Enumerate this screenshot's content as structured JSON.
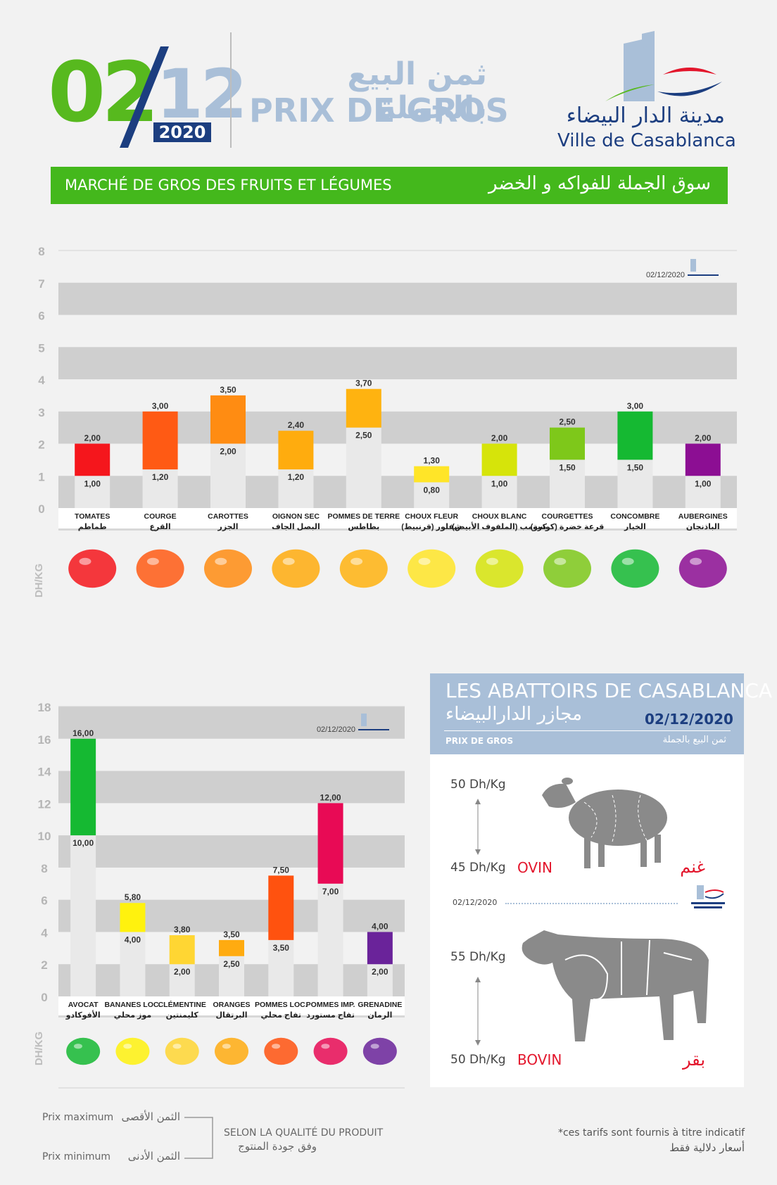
{
  "header": {
    "day": "02",
    "month": "12",
    "year": "2020",
    "title_ar": "ثمن البيع بالجملة",
    "title_fr": "PRIX DE GROS",
    "logo_ar": "مدينة الدار البيضاء",
    "logo_fr": "Ville de Casablanca"
  },
  "banner": {
    "fr": "MARCHÉ DE GROS DES FRUITS ET LÉGUMES",
    "ar": "سوق الجملة للفواكه و الخضر"
  },
  "colors": {
    "green": "#44b81c",
    "blue_light": "#a9bfd8",
    "navy": "#1c3e80",
    "red": "#e3162c"
  },
  "chart_data": [
    {
      "type": "bar",
      "ylabel": "DH/KG",
      "ylim": [
        0,
        8
      ],
      "yticks": [
        "0",
        "1",
        "2",
        "3",
        "4",
        "5",
        "6",
        "7",
        "8"
      ],
      "stamp_date": "02/12/2020",
      "categories": [
        {
          "fr": "TOMATES",
          "ar": "طماطم"
        },
        {
          "fr": "COURGE",
          "ar": "القرع"
        },
        {
          "fr": "CAROTTES",
          "ar": "الجزر"
        },
        {
          "fr": "OIGNON SEC",
          "ar": "البصل الجاف"
        },
        {
          "fr": "POMMES DE TERRE",
          "ar": "بطاطس"
        },
        {
          "fr": "CHOUX FLEUR",
          "ar": "شفلور (قرنبيط)"
        },
        {
          "fr": "CHOUX BLANC",
          "ar": "كرومب (الملفوف الأبيض)"
        },
        {
          "fr": "COURGETTES",
          "ar": "قرعة خضرة (كوسة)"
        },
        {
          "fr": "CONCOMBRE",
          "ar": "الخيار"
        },
        {
          "fr": "AUBERGINES",
          "ar": "الباذنجان"
        }
      ],
      "min": [
        1.0,
        1.2,
        2.0,
        1.2,
        2.5,
        0.8,
        1.0,
        1.5,
        1.5,
        1.0
      ],
      "max": [
        2.0,
        3.0,
        3.5,
        2.4,
        3.7,
        1.3,
        2.0,
        2.5,
        3.0,
        2.0
      ],
      "min_labels": [
        "1,00",
        "1,20",
        "2,00",
        "1,20",
        "2,50",
        "0,80",
        "1,00",
        "1,50",
        "1,50",
        "1,00"
      ],
      "max_labels": [
        "2,00",
        "3,00",
        "3,50",
        "2,40",
        "3,70",
        "1,30",
        "2,00",
        "2,50",
        "3,00",
        "2,00"
      ],
      "colors": [
        "#f5161c",
        "#ff5a14",
        "#ff8c12",
        "#ffac0e",
        "#ffb310",
        "#ffe528",
        "#d6e40a",
        "#7ec81a",
        "#15b932",
        "#8c0e93"
      ]
    },
    {
      "type": "bar",
      "ylabel": "DH/KG",
      "ylim": [
        0,
        18
      ],
      "yticks": [
        "0",
        "2",
        "4",
        "6",
        "8",
        "10",
        "12",
        "14",
        "16",
        "18"
      ],
      "stamp_date": "02/12/2020",
      "categories": [
        {
          "fr": "AVOCAT",
          "ar": "الأفوكادو"
        },
        {
          "fr": "BANANES LOC.",
          "ar": "موز محلي"
        },
        {
          "fr": "CLÉMENTINE",
          "ar": "كليمنتين"
        },
        {
          "fr": "ORANGES",
          "ar": "البرتقال"
        },
        {
          "fr": "POMMES LOC.",
          "ar": "تفاح محلي"
        },
        {
          "fr": "POMMES IMP.",
          "ar": "تفاح مستورد"
        },
        {
          "fr": "GRENADINE",
          "ar": "الرمان"
        }
      ],
      "min": [
        10.0,
        4.0,
        2.0,
        2.5,
        3.5,
        7.0,
        2.0
      ],
      "max": [
        16.0,
        5.8,
        3.8,
        3.5,
        7.5,
        12.0,
        4.0
      ],
      "min_labels": [
        "10,00",
        "4,00",
        "2,00",
        "2,50",
        "3,50",
        "7,00",
        "2,00"
      ],
      "max_labels": [
        "16,00",
        "5,80",
        "3,80",
        "3,50",
        "7,50",
        "12,00",
        "4,00"
      ],
      "colors": [
        "#15b932",
        "#fff20e",
        "#ffd633",
        "#ffab10",
        "#ff520f",
        "#e80a55",
        "#6a239a"
      ]
    }
  ],
  "abattoirs": {
    "title": "LES ABATTOIRS DE CASABLANCA",
    "title_ar": "مجازر الدارالبيضاء",
    "date": "02/12/2020",
    "sub_fr": "PRIX DE GROS",
    "sub_ar": "ثمن البيع بالجملة",
    "stamp_date": "02/12/2020",
    "ovin": {
      "max": "50 Dh/Kg",
      "min": "45 Dh/Kg",
      "name": "OVIN",
      "name_ar": "غنم"
    },
    "bovin": {
      "max": "55 Dh/Kg",
      "min": "50 Dh/Kg",
      "name": "BOVIN",
      "name_ar": "بقر"
    }
  },
  "legend": {
    "max_fr": "Prix maximum",
    "max_ar": "الثمن الأقصى",
    "min_fr": "Prix minimum",
    "min_ar": "الثمن الأدنى",
    "quality_fr": "SELON LA QUALITÉ DU PRODUIT",
    "quality_ar": "وفق جودة المنتوج"
  },
  "note": {
    "fr": "*ces tarifs sont fournis à titre indicatif",
    "ar": "أسعار دلالية فقط"
  }
}
